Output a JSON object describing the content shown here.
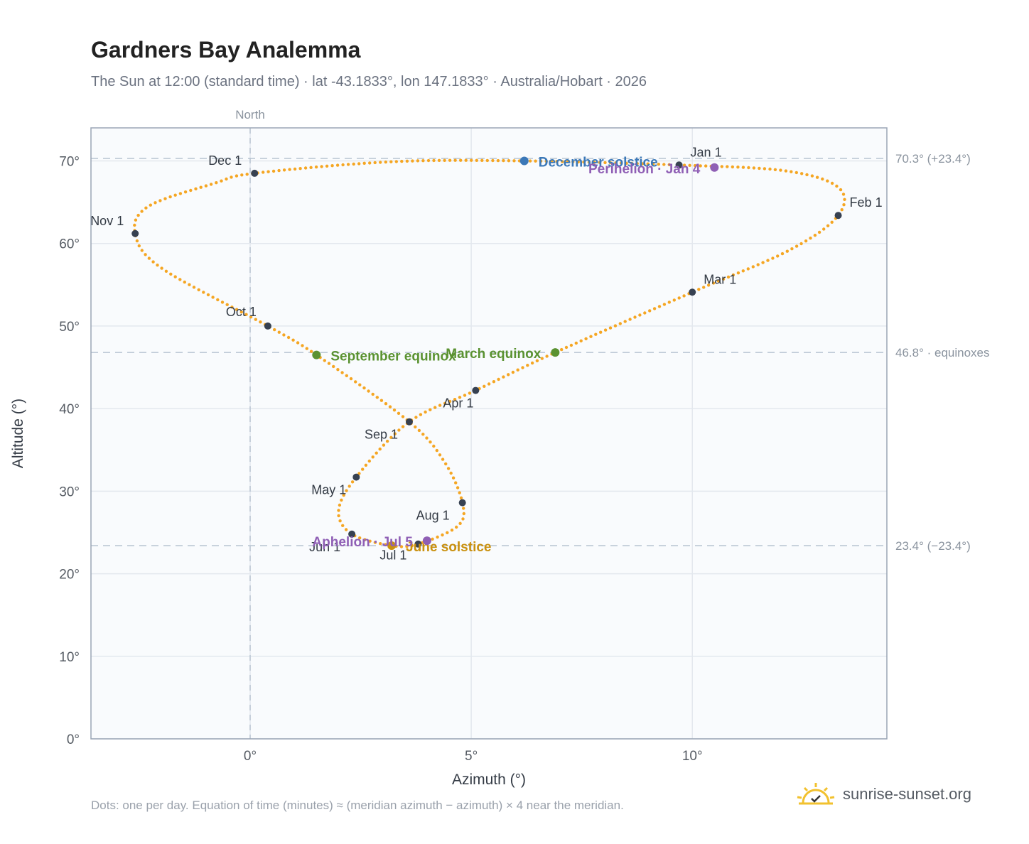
{
  "header": {
    "title": "Gardners Bay Analemma",
    "subtitle": "The Sun at 12:00 (standard time) · lat -43.1833°, lon 147.1833° · Australia/Hobart · 2026"
  },
  "footer": {
    "note": "Dots: one per day. Equation of time (minutes) ≈ (meridian azimuth − azimuth) × 4 near the meridian.",
    "brand": "sunrise-sunset.org",
    "brand_icon": "sun-logo-icon"
  },
  "colors": {
    "curve": "#f5a623",
    "month_dot": "#374151",
    "solstice_dec": "#3b78b8",
    "solstice_jun": "#c9900e",
    "equinox": "#5a9231",
    "perihelion": "#8f5fb5",
    "reference_line": "#b8c4d2",
    "plot_bg": "#f9fbfd",
    "frame": "#9aa5b5"
  },
  "chart_data": {
    "type": "scatter",
    "xlabel": "Azimuth (°)",
    "ylabel": "Altitude (°)",
    "xlim": [
      -3.6,
      14.4
    ],
    "ylim": [
      0,
      74
    ],
    "xticks": [
      0,
      5,
      10
    ],
    "xtick_labels": [
      "0°",
      "5°",
      "10°"
    ],
    "yticks": [
      0,
      10,
      20,
      30,
      40,
      50,
      60,
      70
    ],
    "ytick_labels": [
      "0°",
      "10°",
      "20°",
      "30°",
      "40°",
      "50°",
      "60°",
      "70°"
    ],
    "grid": true,
    "north_line": {
      "x": 0,
      "label": "North"
    },
    "reference_lines": [
      {
        "y": 70.3,
        "label": "70.3° (+23.4°)"
      },
      {
        "y": 46.8,
        "label": "46.8° · equinoxes"
      },
      {
        "y": 23.4,
        "label": "23.4° (−23.4°)"
      }
    ],
    "month_markers": [
      {
        "label": "Jan 1",
        "az": 9.7,
        "alt": 69.5
      },
      {
        "label": "Feb 1",
        "az": 13.3,
        "alt": 63.4
      },
      {
        "label": "Mar 1",
        "az": 10.0,
        "alt": 54.1
      },
      {
        "label": "Apr 1",
        "az": 5.1,
        "alt": 42.2
      },
      {
        "label": "May 1",
        "az": 2.4,
        "alt": 31.7
      },
      {
        "label": "Jun 1",
        "az": 2.3,
        "alt": 24.8
      },
      {
        "label": "Jul 1",
        "az": 3.8,
        "alt": 23.6
      },
      {
        "label": "Aug 1",
        "az": 4.8,
        "alt": 28.6
      },
      {
        "label": "Sep 1",
        "az": 3.6,
        "alt": 38.4
      },
      {
        "label": "Oct 1",
        "az": 0.4,
        "alt": 50.0
      },
      {
        "label": "Nov 1",
        "az": -2.6,
        "alt": 61.2
      },
      {
        "label": "Dec 1",
        "az": 0.1,
        "alt": 68.5
      }
    ],
    "events": [
      {
        "label": "December solstice",
        "az": 6.2,
        "alt": 70.0,
        "kind": "solstice_dec"
      },
      {
        "label": "Perihelion · Jan 4",
        "az": 10.5,
        "alt": 69.2,
        "kind": "perihelion"
      },
      {
        "label": "March equinox",
        "az": 6.9,
        "alt": 46.8,
        "kind": "equinox"
      },
      {
        "label": "September equinox",
        "az": 1.5,
        "alt": 46.5,
        "kind": "equinox"
      },
      {
        "label": "June solstice",
        "az": 3.2,
        "alt": 23.4,
        "kind": "solstice_jun"
      },
      {
        "label": "Aphelion · Jul 5",
        "az": 4.0,
        "alt": 24.0,
        "kind": "perihelion"
      }
    ],
    "curve_path": [
      {
        "az": 9.7,
        "alt": 69.5
      },
      {
        "az": 12.1,
        "alt": 68.8
      },
      {
        "az": 13.3,
        "alt": 66.8
      },
      {
        "az": 13.3,
        "alt": 63.4
      },
      {
        "az": 12.2,
        "alt": 59.2
      },
      {
        "az": 10.0,
        "alt": 54.1
      },
      {
        "az": 6.9,
        "alt": 46.8
      },
      {
        "az": 5.1,
        "alt": 42.2
      },
      {
        "az": 3.6,
        "alt": 38.4
      },
      {
        "az": 2.4,
        "alt": 31.7
      },
      {
        "az": 2.0,
        "alt": 27.6
      },
      {
        "az": 2.3,
        "alt": 24.8
      },
      {
        "az": 3.2,
        "alt": 23.4
      },
      {
        "az": 3.8,
        "alt": 23.6
      },
      {
        "az": 4.7,
        "alt": 25.8
      },
      {
        "az": 4.8,
        "alt": 28.6
      },
      {
        "az": 4.4,
        "alt": 33.5
      },
      {
        "az": 3.6,
        "alt": 38.4
      },
      {
        "az": 1.5,
        "alt": 46.5
      },
      {
        "az": 0.4,
        "alt": 50.0
      },
      {
        "az": -2.0,
        "alt": 57.0
      },
      {
        "az": -2.6,
        "alt": 61.2
      },
      {
        "az": -2.3,
        "alt": 64.5
      },
      {
        "az": -0.8,
        "alt": 67.3
      },
      {
        "az": 0.1,
        "alt": 68.5
      },
      {
        "az": 3.2,
        "alt": 69.9
      },
      {
        "az": 6.2,
        "alt": 70.0
      },
      {
        "az": 9.7,
        "alt": 69.5
      }
    ]
  }
}
